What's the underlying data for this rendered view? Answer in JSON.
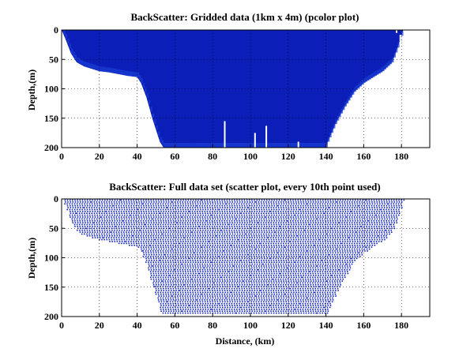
{
  "chart_data": [
    {
      "type": "heatmap",
      "title": "BackScatter: Gridded data (1km x 4m) (pcolor plot)",
      "xlabel": "",
      "ylabel": "Depth,(m)",
      "xlim": [
        0,
        195
      ],
      "ylim": [
        200,
        0
      ],
      "xticks": [
        "0",
        "20",
        "40",
        "60",
        "80",
        "100",
        "120",
        "140",
        "160",
        "180"
      ],
      "yticks": [
        "0",
        "50",
        "100",
        "150",
        "200"
      ],
      "grid": true,
      "color": "#0b1fb8",
      "bottom_profile": {
        "x": [
          0,
          2,
          5,
          8,
          12,
          20,
          25,
          30,
          35,
          40,
          42,
          45,
          48,
          50,
          52,
          54,
          55,
          140,
          141,
          143,
          145,
          150,
          155,
          160,
          165,
          170,
          175,
          178,
          181
        ],
        "depth": [
          0,
          15,
          40,
          55,
          62,
          70,
          72,
          75,
          78,
          80,
          90,
          115,
          150,
          170,
          190,
          200,
          200,
          200,
          190,
          175,
          160,
          130,
          105,
          90,
          80,
          70,
          55,
          30,
          0
        ]
      },
      "gaps": [
        {
          "x": 86,
          "from": 155,
          "to": 200
        },
        {
          "x": 102,
          "from": 175,
          "to": 200
        },
        {
          "x": 108,
          "from": 163,
          "to": 200
        },
        {
          "x": 125,
          "from": 190,
          "to": 200
        },
        {
          "x": 177,
          "from": 0,
          "to": 5
        },
        {
          "x": 179,
          "from": 8,
          "to": 70
        }
      ]
    },
    {
      "type": "scatter",
      "title": "BackScatter: Full data set (scatter plot, every 10th point used)",
      "xlabel": "Distance, (km)",
      "ylabel": "Depth,(m)",
      "xlim": [
        0,
        195
      ],
      "ylim": [
        200,
        0
      ],
      "xticks": [
        "0",
        "20",
        "40",
        "60",
        "80",
        "100",
        "120",
        "140",
        "160",
        "180"
      ],
      "yticks": [
        "0",
        "50",
        "100",
        "150",
        "200"
      ],
      "grid": true,
      "color": "#0b1fb8",
      "bottom_profile": {
        "x": [
          0,
          2,
          5,
          8,
          12,
          20,
          25,
          30,
          35,
          40,
          42,
          45,
          48,
          50,
          52,
          54,
          55,
          140,
          141,
          143,
          145,
          150,
          155,
          160,
          165,
          170,
          175,
          178,
          181
        ],
        "depth": [
          0,
          15,
          40,
          55,
          62,
          70,
          72,
          75,
          78,
          80,
          90,
          115,
          150,
          170,
          190,
          195,
          195,
          195,
          190,
          175,
          160,
          130,
          105,
          90,
          80,
          70,
          55,
          30,
          0
        ]
      }
    }
  ]
}
